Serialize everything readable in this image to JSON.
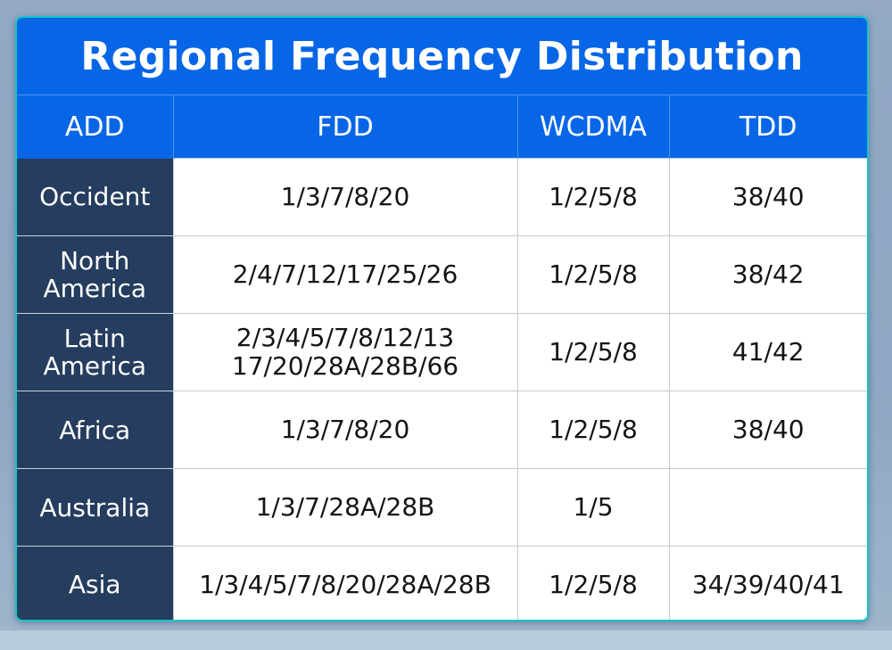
{
  "title": "Regional Frequency Distribution",
  "headers": [
    "ADD",
    "FDD",
    "WCDMA",
    "TDD"
  ],
  "rows": [
    {
      "region": [
        "Occident"
      ],
      "fdd": [
        "1/3/7/8/20"
      ],
      "wcdma": "1/2/5/8",
      "tdd": "38/40"
    },
    {
      "region": [
        "North",
        "America"
      ],
      "fdd": [
        "2/4/7/12/17/25/26"
      ],
      "wcdma": "1/2/5/8",
      "tdd": "38/42"
    },
    {
      "region": [
        "Latin",
        "America"
      ],
      "fdd": [
        "2/3/4/5/7/8/12/13",
        "17/20/28A/28B/66"
      ],
      "wcdma": "1/2/5/8",
      "tdd": "41/42"
    },
    {
      "region": [
        "Africa"
      ],
      "fdd": [
        "1/3/7/8/20"
      ],
      "wcdma": "1/2/5/8",
      "tdd": "38/40"
    },
    {
      "region": [
        "Australia"
      ],
      "fdd": [
        "1/3/7/28A/28B"
      ],
      "wcdma": "1/5",
      "tdd": ""
    },
    {
      "region": [
        "Asia"
      ],
      "fdd": [
        "1/3/4/5/7/8/20/28A/28B"
      ],
      "wcdma": "1/2/5/8",
      "tdd": "34/39/40/41"
    }
  ],
  "colors": {
    "header_blue": "#0766e6",
    "region_navy": "#253d5e",
    "frame_teal": "#12c6c4",
    "background": "#93a9c4"
  }
}
